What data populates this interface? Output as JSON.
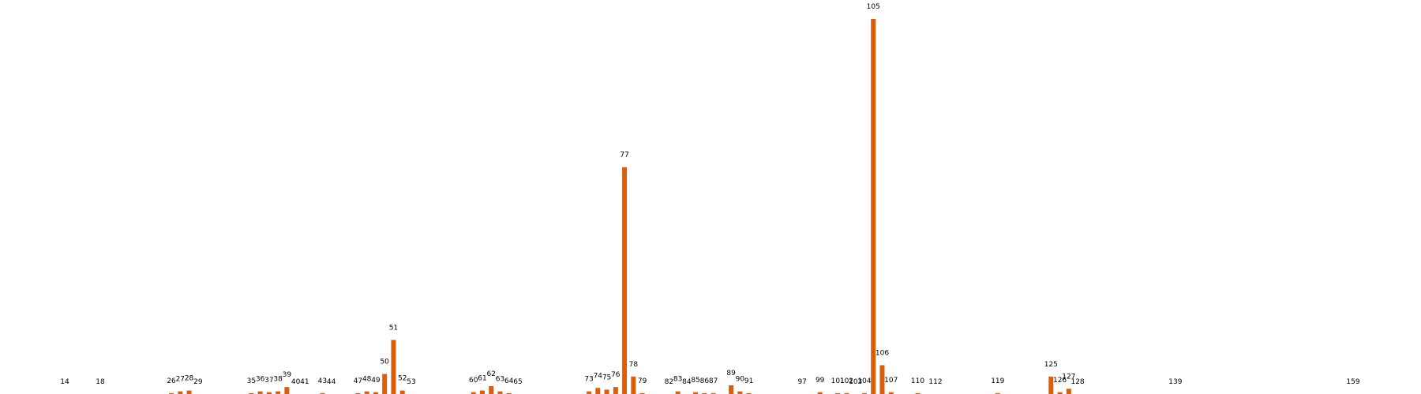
{
  "chart_data": {
    "type": "bar",
    "title": "",
    "xlabel": "",
    "ylabel": "",
    "bar_color": "#d95f0e",
    "grid": false,
    "ylim": [
      0,
      215
    ],
    "categories": [
      "14",
      "18",
      "26",
      "27",
      "28",
      "29",
      "35",
      "36",
      "37",
      "38",
      "39",
      "40",
      "41",
      "43",
      "44",
      "47",
      "48",
      "49",
      "50",
      "51",
      "52",
      "53",
      "60",
      "61",
      "62",
      "63",
      "64",
      "65",
      "73",
      "74",
      "75",
      "76",
      "77",
      "78",
      "79",
      "82",
      "83",
      "84",
      "85",
      "86",
      "87",
      "89",
      "90",
      "91",
      "97",
      "99",
      "101",
      "102",
      "103",
      "104",
      "105",
      "106",
      "107",
      "110",
      "112",
      "119",
      "125",
      "126",
      "127",
      "128",
      "139",
      "159"
    ],
    "x": [
      14,
      18,
      26,
      27,
      28,
      29,
      35,
      36,
      37,
      38,
      39,
      40,
      41,
      43,
      44,
      47,
      48,
      49,
      50,
      51,
      52,
      53,
      60,
      61,
      62,
      63,
      64,
      65,
      73,
      74,
      75,
      76,
      77,
      78,
      79,
      82,
      83,
      84,
      85,
      86,
      87,
      89,
      90,
      91,
      97,
      99,
      101,
      102,
      103,
      104,
      105,
      106,
      107,
      110,
      112,
      119,
      125,
      126,
      127,
      128,
      139,
      159
    ],
    "values": [
      0,
      0,
      0.5,
      1.5,
      2,
      0,
      0.5,
      1.5,
      1,
      1.5,
      4,
      0,
      0,
      0.5,
      0,
      0.5,
      1.5,
      1,
      11.5,
      31,
      2,
      0,
      1,
      2,
      4.5,
      1.5,
      0.5,
      0,
      1.5,
      3.5,
      2.5,
      4,
      130,
      10,
      0.5,
      0,
      1.5,
      0,
      1,
      0.5,
      0.5,
      5,
      1.5,
      0.5,
      0,
      1,
      0.5,
      0.5,
      0,
      0.5,
      215,
      16.5,
      1,
      0.5,
      0,
      0.5,
      10,
      1,
      3,
      0,
      0,
      0
    ]
  }
}
